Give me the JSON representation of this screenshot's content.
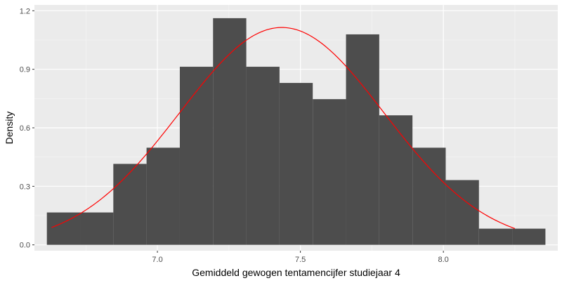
{
  "chart_data": {
    "type": "bar",
    "subtype": "histogram-with-density-curve",
    "xlabel": "Gemiddeld gewogen tentamencijfer studiejaar 4",
    "ylabel": "Density",
    "xlim": [
      6.57,
      8.4
    ],
    "ylim": [
      -0.03,
      1.23
    ],
    "x_ticks": [
      7.0,
      7.5,
      8.0
    ],
    "x_tick_labels": [
      "7.0",
      "7.5",
      "8.0"
    ],
    "y_ticks": [
      0.0,
      0.3,
      0.6,
      0.9,
      1.2
    ],
    "y_tick_labels": [
      "0.0",
      "0.3",
      "0.6",
      "0.9",
      "1.2"
    ],
    "grid": true,
    "bins": [
      {
        "x0": 6.6135,
        "x1": 6.7297,
        "density": 0.166
      },
      {
        "x0": 6.7297,
        "x1": 6.8459,
        "density": 0.166
      },
      {
        "x0": 6.8459,
        "x1": 6.9621,
        "density": 0.415
      },
      {
        "x0": 6.9621,
        "x1": 7.0784,
        "density": 0.498
      },
      {
        "x0": 7.0784,
        "x1": 7.1946,
        "density": 0.913
      },
      {
        "x0": 7.1946,
        "x1": 7.3108,
        "density": 1.162
      },
      {
        "x0": 7.3108,
        "x1": 7.427,
        "density": 0.913
      },
      {
        "x0": 7.427,
        "x1": 7.5432,
        "density": 0.83
      },
      {
        "x0": 7.5432,
        "x1": 7.6595,
        "density": 0.747
      },
      {
        "x0": 7.6595,
        "x1": 7.7757,
        "density": 1.079
      },
      {
        "x0": 7.7757,
        "x1": 7.8919,
        "density": 0.664
      },
      {
        "x0": 7.8919,
        "x1": 8.0081,
        "density": 0.498
      },
      {
        "x0": 8.0081,
        "x1": 8.1243,
        "density": 0.332
      },
      {
        "x0": 8.1243,
        "x1": 8.2405,
        "density": 0.083
      },
      {
        "x0": 8.2405,
        "x1": 8.3568,
        "density": 0.083
      }
    ],
    "density_curve": {
      "distribution": "normal",
      "mean": 7.435,
      "sd": 0.358,
      "x_range": [
        6.63,
        8.25
      ]
    },
    "colors": {
      "panel_background": "#ebebeb",
      "grid_major": "#ffffff",
      "bar_fill": "#4d4d4d",
      "curve": "#ff0000"
    }
  }
}
